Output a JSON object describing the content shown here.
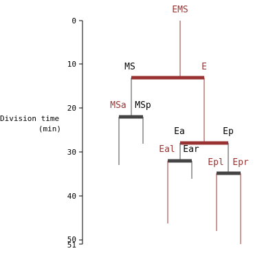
{
  "colors": {
    "red": "#993333",
    "dark": "#444444",
    "axis": "#000000"
  },
  "axis": {
    "label_line1": "Division time",
    "label_line2": "(min)",
    "ticks": [
      "0",
      "10",
      "20",
      "30",
      "40",
      "50",
      "51"
    ]
  },
  "cells": {
    "EMS": "EMS",
    "MS": "MS",
    "E": "E",
    "MSa": "MSa",
    "MSp": "MSp",
    "Ea": "Ea",
    "Ep": "Ep",
    "Eal": "Eal",
    "Ear": "Ear",
    "Epl": "Epl",
    "Epr": "Epr"
  }
}
